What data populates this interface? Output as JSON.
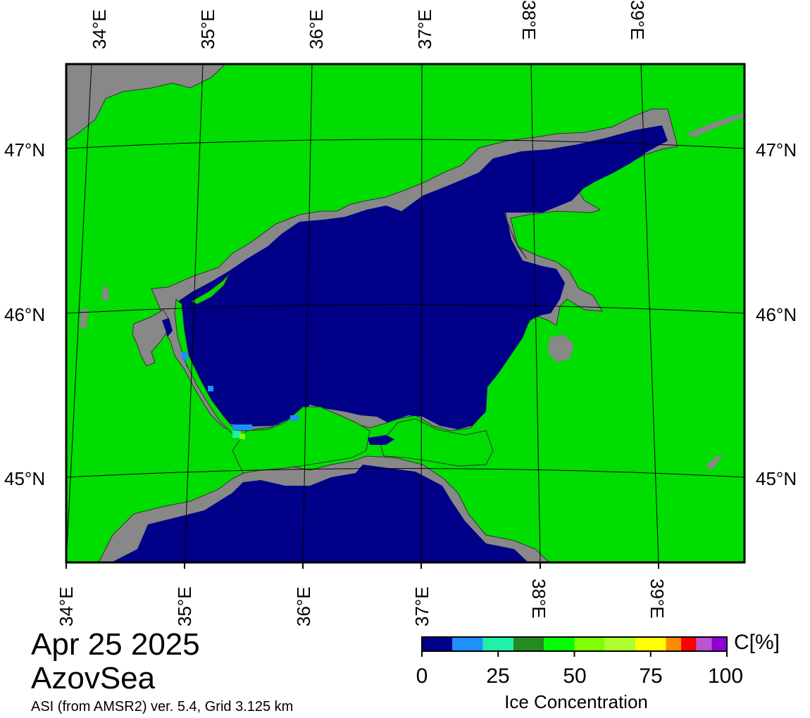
{
  "map": {
    "lon_labels_top": [
      "34°E",
      "35°E",
      "36°E",
      "37°E",
      "38°E",
      "39°E"
    ],
    "lon_labels_bottom": [
      "34°E",
      "35°E",
      "36°E",
      "37°E",
      "38°E",
      "39°E"
    ],
    "lat_labels_left": [
      "47°N",
      "46°N",
      "45°N"
    ],
    "lat_labels_right": [
      "47°N",
      "46°N",
      "45°N"
    ],
    "colors": {
      "land": "#00dd00",
      "coast": "#888888",
      "water": "#000088"
    }
  },
  "title": {
    "date": "Apr 25 2025",
    "region": "AzovSea",
    "product": "ASI (from AMSR2) ver. 5.4,  Grid 3.125 km"
  },
  "colorbar": {
    "unit": "C[%]",
    "title": "Ice Concentration",
    "ticks": [
      "0",
      "25",
      "50",
      "75",
      "100"
    ],
    "range": [
      0,
      100
    ],
    "colors": [
      "#000088",
      "#1e90ff",
      "#20f0a8",
      "#228b22",
      "#00ff00",
      "#7fff00",
      "#adff2f",
      "#ffff00",
      "#ff8c00",
      "#ff0000",
      "#ba55d3",
      "#9400d3"
    ]
  }
}
